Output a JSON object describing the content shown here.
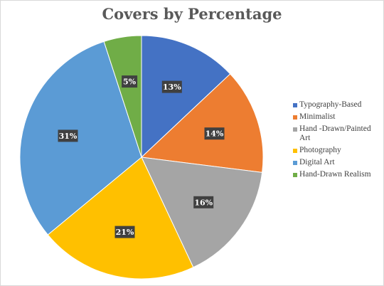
{
  "chart_data": {
    "type": "pie",
    "title": "Covers by Percentage",
    "legend_position": "right",
    "slices": [
      {
        "label": "Typography-Based",
        "value": 13,
        "display": "13%",
        "color": "#4472C4"
      },
      {
        "label": "Minimalist",
        "value": 14,
        "display": "14%",
        "color": "#ED7D31"
      },
      {
        "label": "Hand -Drawn/Painted Art",
        "value": 16,
        "display": "16%",
        "color": "#A5A5A5"
      },
      {
        "label": "Photography",
        "value": 21,
        "display": "21%",
        "color": "#FFC000"
      },
      {
        "label": "Digital Art",
        "value": 31,
        "display": "31%",
        "color": "#5B9BD5"
      },
      {
        "label": "Hand-Drawn Realism",
        "value": 5,
        "display": "5%",
        "color": "#70AD47"
      }
    ]
  }
}
